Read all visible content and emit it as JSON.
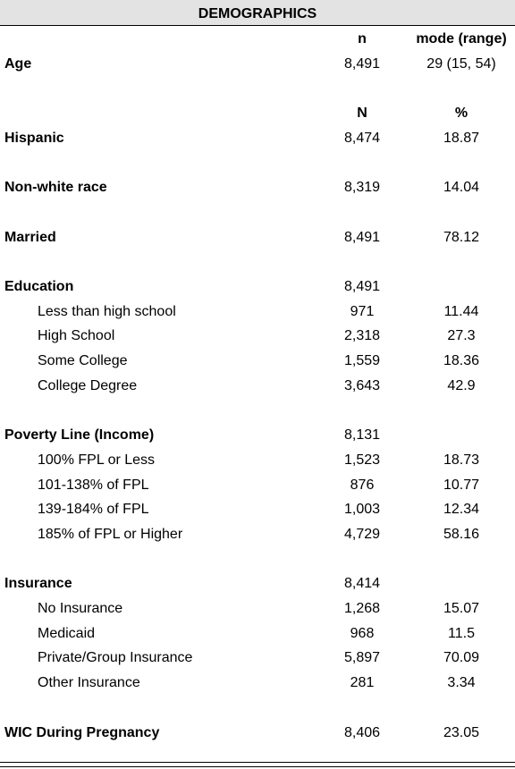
{
  "table": {
    "title": "DEMOGRAPHICS",
    "age_columns": [
      "n",
      "mode (range)"
    ],
    "age": {
      "label": "Age",
      "n": "8,491",
      "value": "29 (15, 54)"
    },
    "columns": [
      "N",
      "%"
    ],
    "sections": [
      {
        "label": "Hispanic",
        "n": "8,474",
        "value": "18.87"
      },
      {
        "label": "Non-white race",
        "n": "8,319",
        "value": "14.04"
      },
      {
        "label": "Married",
        "n": "8,491",
        "value": "78.12"
      },
      {
        "label": "Education",
        "n": "8,491",
        "items": [
          {
            "label": "Less than high school",
            "n": "971",
            "value": "11.44"
          },
          {
            "label": "High School",
            "n": "2,318",
            "value": "27.3"
          },
          {
            "label": "Some College",
            "n": "1,559",
            "value": "18.36"
          },
          {
            "label": "College Degree",
            "n": "3,643",
            "value": "42.9"
          }
        ]
      },
      {
        "label": "Poverty Line (Income)",
        "n": "8,131",
        "items": [
          {
            "label": "100% FPL or Less",
            "n": "1,523",
            "value": "18.73"
          },
          {
            "label": "101-138% of FPL",
            "n": "876",
            "value": "10.77"
          },
          {
            "label": "139-184% of FPL",
            "n": "1,003",
            "value": "12.34"
          },
          {
            "label": "185% of FPL or Higher",
            "n": "4,729",
            "value": "58.16"
          }
        ]
      },
      {
        "label": "Insurance",
        "n": "8,414",
        "items": [
          {
            "label": "No Insurance",
            "n": "1,268",
            "value": "15.07"
          },
          {
            "label": "Medicaid",
            "n": "968",
            "value": "11.5"
          },
          {
            "label": "Private/Group Insurance",
            "n": "5,897",
            "value": "70.09"
          },
          {
            "label": "Other Insurance",
            "n": "281",
            "value": "3.34"
          }
        ]
      },
      {
        "label": "WIC During Pregnancy",
        "n": "8,406",
        "value": "23.05"
      }
    ]
  }
}
